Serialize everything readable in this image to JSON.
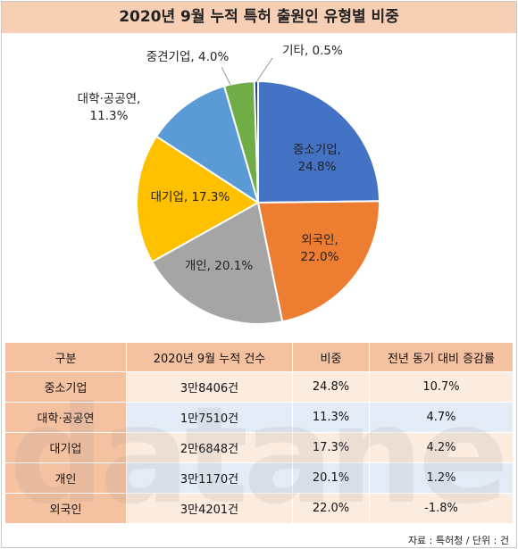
{
  "title": "2020년 9월 누적 특허 출원인 유형별 비중",
  "chart_data": {
    "type": "pie",
    "title": "2020년 9월 누적 특허 출원인 유형별 비중",
    "slices": [
      {
        "label": "중소기업",
        "value": 24.8,
        "display": "24.8%",
        "color": "#4472C4"
      },
      {
        "label": "외국인",
        "value": 22.0,
        "display": "22.0%",
        "color": "#ED7D31"
      },
      {
        "label": "개인",
        "value": 20.1,
        "display": "20.1%",
        "color": "#A5A5A5"
      },
      {
        "label": "대기업",
        "value": 17.3,
        "display": "17.3%",
        "color": "#FFC000"
      },
      {
        "label": "대학·공공연",
        "value": 11.3,
        "display": "11.3%",
        "color": "#5B9BD5"
      },
      {
        "label": "중견기업",
        "value": 4.0,
        "display": "4.0%",
        "color": "#70AD47"
      },
      {
        "label": "기타",
        "value": 0.5,
        "display": "0.5%",
        "color": "#264478"
      }
    ]
  },
  "table": {
    "headers": [
      "구분",
      "2020년 9월 누적 건수",
      "비중",
      "전년 동기 대비 증감률"
    ],
    "rows": [
      [
        "중소기업",
        "3만8406건",
        "24.8%",
        "10.7%"
      ],
      [
        "대학·공공연",
        "1만7510건",
        "11.3%",
        "4.7%"
      ],
      [
        "대기업",
        "2만6848건",
        "17.3%",
        "4.2%"
      ],
      [
        "개인",
        "3만1170건",
        "20.1%",
        "1.2%"
      ],
      [
        "외국인",
        "3만4201건",
        "22.0%",
        "-1.8%"
      ]
    ]
  },
  "source": "자료 : 특허청 / 단위 : 건",
  "watermark": "datanews",
  "colors": {
    "header_bg": "#F5C2A1",
    "title_bg": "#F7CFB5"
  }
}
